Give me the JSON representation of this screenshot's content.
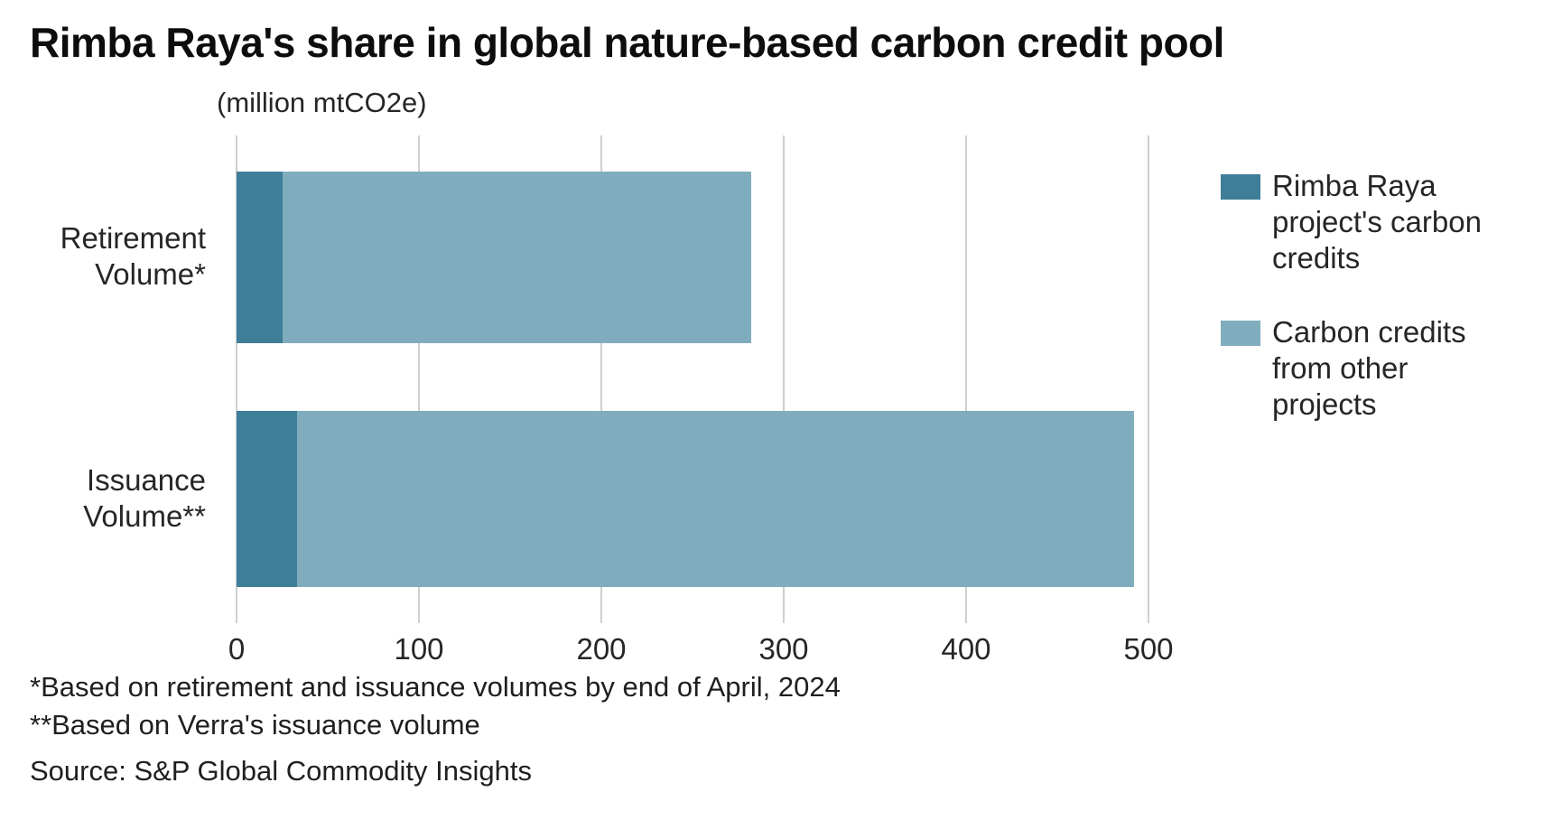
{
  "chart_data": {
    "type": "bar",
    "orientation": "horizontal",
    "stacked": true,
    "title": "Rimba Raya's share in global nature-based carbon credit pool",
    "unit_label": "(million mtCO2e)",
    "categories": [
      "Retirement Volume*",
      "Issuance Volume**"
    ],
    "series": [
      {
        "name": "Rimba Raya project's carbon credits",
        "color": "#3f7e99",
        "values": [
          25,
          33
        ]
      },
      {
        "name": "Carbon credits from other projects",
        "color": "#7fadbe",
        "values": [
          257,
          459
        ]
      }
    ],
    "totals": [
      282,
      492
    ],
    "xlim": [
      0,
      500
    ],
    "xticks": [
      0,
      100,
      200,
      300,
      400,
      500
    ],
    "grid": true,
    "legend_position": "right",
    "footnotes": [
      "*Based on retirement and issuance volumes by end of April, 2024",
      "**Based on Verra's issuance volume"
    ],
    "source": "Source: S&P Global Commodity Insights"
  },
  "colors": {
    "rimba_raya": "#3f7e99",
    "other_projects": "#7fadbe",
    "gridline": "#cfcfcf",
    "text": "#262626",
    "title": "#0d0d0d"
  }
}
